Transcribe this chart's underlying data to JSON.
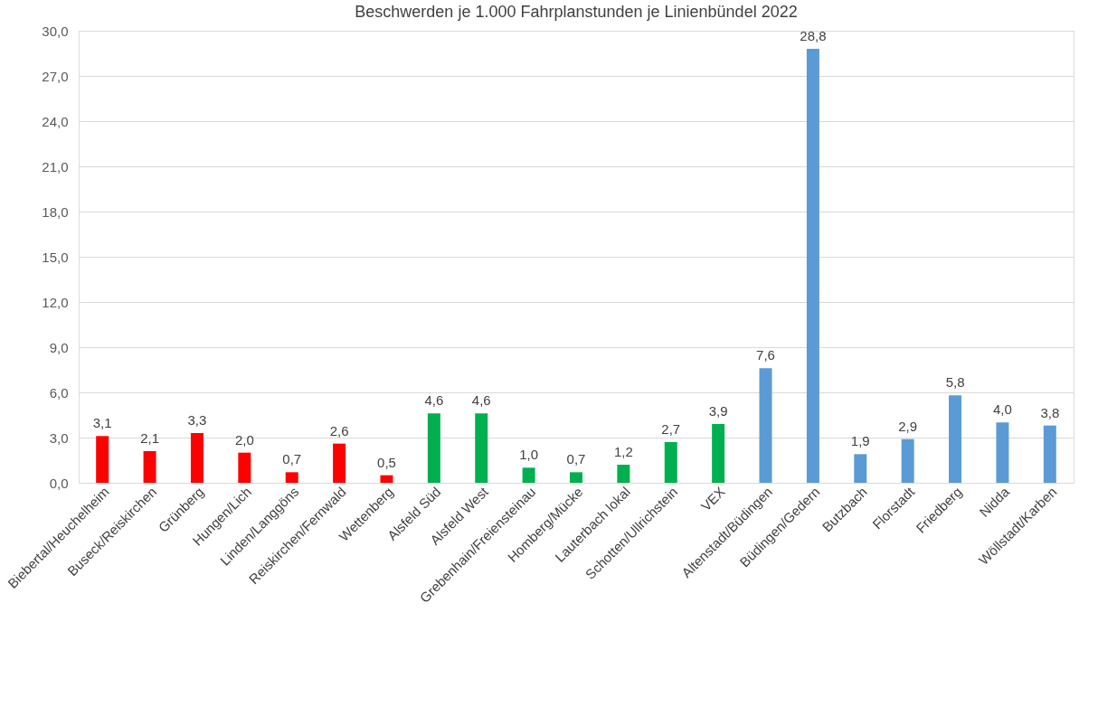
{
  "chart_data": {
    "type": "bar",
    "title": "Beschwerden je 1.000 Fahrplanstunden je Linienbündel 2022",
    "categories": [
      "Biebertal/Heuchelheim",
      "Buseck/Reiskirchen",
      "Grünberg",
      "Hungen/Lich",
      "Linden/Langgöns",
      "Reiskirchen/Fernwald",
      "Wettenberg",
      "Alsfeld Süd",
      "Alsfeld West",
      "Grebenhain/Freiensteinau",
      "Homberg/Mücke",
      "Lauterbach lokal",
      "Schotten/Ullrichstein",
      "VEX",
      "Altenstadt/Büdingen",
      "Büdingen/Gedern",
      "Butzbach",
      "Florstadt",
      "Friedberg",
      "Nidda",
      "Wöllstadt/Karben"
    ],
    "values": [
      3.1,
      2.1,
      3.3,
      2.0,
      0.7,
      2.6,
      0.5,
      4.6,
      4.6,
      1.0,
      0.7,
      1.2,
      2.7,
      3.9,
      7.6,
      28.8,
      1.9,
      2.9,
      5.8,
      4.0,
      3.8
    ],
    "value_labels": [
      "3,1",
      "2,1",
      "3,3",
      "2,0",
      "0,7",
      "2,6",
      "0,5",
      "4,6",
      "4,6",
      "1,0",
      "0,7",
      "1,2",
      "2,7",
      "3,9",
      "7,6",
      "28,8",
      "1,9",
      "2,9",
      "5,8",
      "4,0",
      "3,8"
    ],
    "colors": [
      "#ff0000",
      "#ff0000",
      "#ff0000",
      "#ff0000",
      "#ff0000",
      "#ff0000",
      "#ff0000",
      "#00b050",
      "#00b050",
      "#00b050",
      "#00b050",
      "#00b050",
      "#00b050",
      "#00b050",
      "#5b9bd5",
      "#5b9bd5",
      "#5b9bd5",
      "#5b9bd5",
      "#5b9bd5",
      "#5b9bd5",
      "#5b9bd5"
    ],
    "ylim": [
      0,
      30
    ],
    "yticks": [
      {
        "value": 0,
        "label": "0,0"
      },
      {
        "value": 3,
        "label": "3,0"
      },
      {
        "value": 6,
        "label": "6,0"
      },
      {
        "value": 9,
        "label": "9,0"
      },
      {
        "value": 12,
        "label": "12,0"
      },
      {
        "value": 15,
        "label": "15,0"
      },
      {
        "value": 18,
        "label": "18,0"
      },
      {
        "value": 21,
        "label": "21,0"
      },
      {
        "value": 24,
        "label": "24,0"
      },
      {
        "value": 27,
        "label": "27,0"
      },
      {
        "value": 30,
        "label": "30,0"
      }
    ],
    "grid": "y",
    "legend": false
  }
}
